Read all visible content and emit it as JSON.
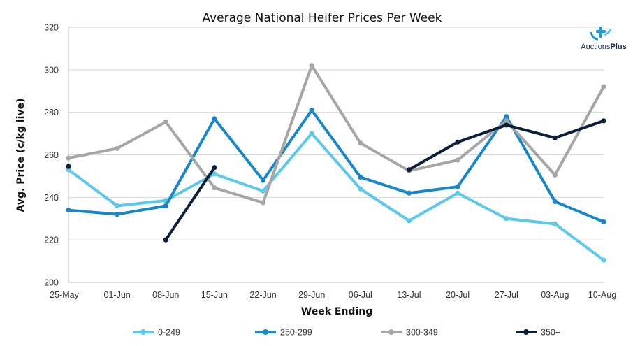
{
  "logo": {
    "brand_prefix": "Auctions",
    "brand_suffix": "Plus",
    "colors": {
      "icon": "#1f9ad6",
      "text": "#1b2a4a"
    }
  },
  "chart_data": {
    "type": "line",
    "title": "Average National Heifer Prices Per Week",
    "xlabel": "Week Ending",
    "ylabel": "Avg. Price (c/kg live)",
    "ylim": [
      200,
      320
    ],
    "yticks": [
      200,
      220,
      240,
      260,
      280,
      300,
      320
    ],
    "grid": true,
    "legend_position": "bottom",
    "categories": [
      "25-May",
      "01-Jun",
      "08-Jun",
      "15-Jun",
      "22-Jun",
      "29-Jun",
      "06-Jul",
      "13-Jul",
      "20-Jul",
      "27-Jul",
      "03-Aug",
      "10-Aug"
    ],
    "series": [
      {
        "name": "0-249",
        "color": "#5bc8ec",
        "values": [
          253,
          236,
          238.5,
          251,
          243,
          270,
          244,
          229,
          242,
          230,
          227.5,
          210.5
        ]
      },
      {
        "name": "250-299",
        "color": "#1787c9",
        "values": [
          234,
          232,
          236,
          277,
          248,
          281,
          249.5,
          242,
          245,
          278,
          238,
          228.5
        ]
      },
      {
        "name": "300-349",
        "color": "#a6a6a6",
        "values": [
          258.5,
          263,
          275.5,
          244.5,
          237.5,
          302,
          265.5,
          252.5,
          257.5,
          276,
          250.5,
          292
        ]
      },
      {
        "name": "350+",
        "color": "#0b1f3a",
        "values": [
          254.5,
          null,
          220,
          254,
          null,
          null,
          null,
          253,
          266,
          274,
          268,
          276
        ]
      }
    ]
  }
}
